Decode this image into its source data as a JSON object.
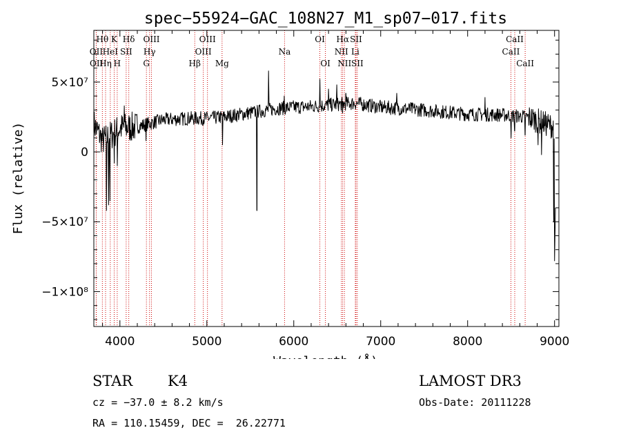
{
  "chart_data": {
    "type": "line",
    "title": "spec−55924−GAC_108N27_M1_sp07−017.fits",
    "xlabel": "Wavelength (Å)",
    "ylabel": "Flux (relative)",
    "xlim": [
      3700,
      9050
    ],
    "ylim": [
      -125000000,
      87000000
    ],
    "x_ticks": [
      4000,
      5000,
      6000,
      7000,
      8000,
      9000
    ],
    "y_ticks": [
      {
        "value": 50000000,
        "label": "5×10⁷"
      },
      {
        "value": 0,
        "label": "0"
      },
      {
        "value": -50000000,
        "label": "−5×10⁷"
      },
      {
        "value": -100000000,
        "label": "−1×10⁸"
      }
    ],
    "continuum": [
      [
        3700,
        20000000
      ],
      [
        3800,
        8000000
      ],
      [
        3900,
        12000000
      ],
      [
        4000,
        17000000
      ],
      [
        4200,
        18000000
      ],
      [
        4500,
        23000000
      ],
      [
        4800,
        24000000
      ],
      [
        5000,
        24000000
      ],
      [
        5200,
        25000000
      ],
      [
        5500,
        28000000
      ],
      [
        5800,
        31000000
      ],
      [
        6000,
        32000000
      ],
      [
        6200,
        32500000
      ],
      [
        6500,
        34000000
      ],
      [
        6700,
        35000000
      ],
      [
        7000,
        32000000
      ],
      [
        7500,
        30000000
      ],
      [
        8000,
        27000000
      ],
      [
        8400,
        26500000
      ],
      [
        8700,
        25000000
      ],
      [
        8900,
        20000000
      ],
      [
        9000,
        18000000
      ]
    ],
    "features": [
      {
        "x": 3845,
        "y": -42000000
      },
      {
        "x": 3870,
        "y": -38000000
      },
      {
        "x": 3885,
        "y": -35000000
      },
      {
        "x": 3935,
        "y": -8000000
      },
      {
        "x": 3970,
        "y": -10000000
      },
      {
        "x": 4050,
        "y": 33000000
      },
      {
        "x": 4300,
        "y": 8000000
      },
      {
        "x": 5180,
        "y": 5000000
      },
      {
        "x": 5577,
        "y": -42000000
      },
      {
        "x": 5585,
        "y": 30000000
      },
      {
        "x": 5710,
        "y": 58000000
      },
      {
        "x": 5890,
        "y": 40000000
      },
      {
        "x": 6300,
        "y": 52000000
      },
      {
        "x": 6400,
        "y": 45000000
      },
      {
        "x": 6495,
        "y": 48000000
      },
      {
        "x": 6562,
        "y": 28000000
      },
      {
        "x": 6598,
        "y": 42000000
      },
      {
        "x": 7185,
        "y": 42000000
      },
      {
        "x": 8200,
        "y": 39000000
      },
      {
        "x": 8500,
        "y": 10000000
      },
      {
        "x": 8542,
        "y": 15000000
      },
      {
        "x": 8662,
        "y": 12000000
      },
      {
        "x": 8810,
        "y": 5000000
      },
      {
        "x": 8850,
        "y": -2000000
      },
      {
        "x": 8990,
        "y": -50000000
      },
      {
        "x": 9000,
        "y": -78000000
      },
      {
        "x": 9010,
        "y": -40000000
      }
    ],
    "noise_seed": 7,
    "noise_amplitude": 5000000,
    "line_color": "#000000",
    "marker_color": "#cc0000",
    "lines": [
      {
        "label": "Hθ",
        "x": 3798,
        "row": 0
      },
      {
        "label": "OII",
        "x": 3727,
        "row": 1
      },
      {
        "label": "OII",
        "x": 3729,
        "row": 2
      },
      {
        "label": "Hη",
        "x": 3835,
        "row": 2
      },
      {
        "label": "HeI",
        "x": 3889,
        "row": 1
      },
      {
        "label": "K",
        "x": 3934,
        "row": 0
      },
      {
        "label": "H",
        "x": 3969,
        "row": 2
      },
      {
        "label": "SII",
        "x": 4072,
        "row": 1
      },
      {
        "label": "Hδ",
        "x": 4102,
        "row": 0
      },
      {
        "label": "OIII",
        "x": 4363,
        "row": 0
      },
      {
        "label": "Hγ",
        "x": 4341,
        "row": 1
      },
      {
        "label": "G",
        "x": 4305,
        "row": 2
      },
      {
        "label": "Hβ",
        "x": 4861,
        "row": 2
      },
      {
        "label": "OIII",
        "x": 4959,
        "row": 1
      },
      {
        "label": "OIII",
        "x": 5007,
        "row": 0
      },
      {
        "label": "Mg",
        "x": 5175,
        "row": 2
      },
      {
        "label": "Na",
        "x": 5894,
        "row": 1
      },
      {
        "label": "OI",
        "x": 6300,
        "row": 0
      },
      {
        "label": "OI",
        "x": 6364,
        "row": 2
      },
      {
        "label": "Hα",
        "x": 6563,
        "row": 0
      },
      {
        "label": "NII",
        "x": 6548,
        "row": 1
      },
      {
        "label": "NII",
        "x": 6583,
        "row": 2
      },
      {
        "label": "SII",
        "x": 6716,
        "row": 0
      },
      {
        "label": "Li",
        "x": 6708,
        "row": 1
      },
      {
        "label": "SII",
        "x": 6731,
        "row": 2
      },
      {
        "label": "CaII",
        "x": 8498,
        "row": 1
      },
      {
        "label": "CaII",
        "x": 8542,
        "row": 0
      },
      {
        "label": "CaII",
        "x": 8662,
        "row": 2
      }
    ]
  },
  "info": {
    "class": "STAR",
    "subclass": "K4",
    "survey": "LAMOST DR3",
    "cz": "cz = −37.0 ± 8.2 km/s",
    "obs_date": "Obs-Date: 20111228",
    "coords": "RA = 110.15459, DEC =  26.22771"
  }
}
